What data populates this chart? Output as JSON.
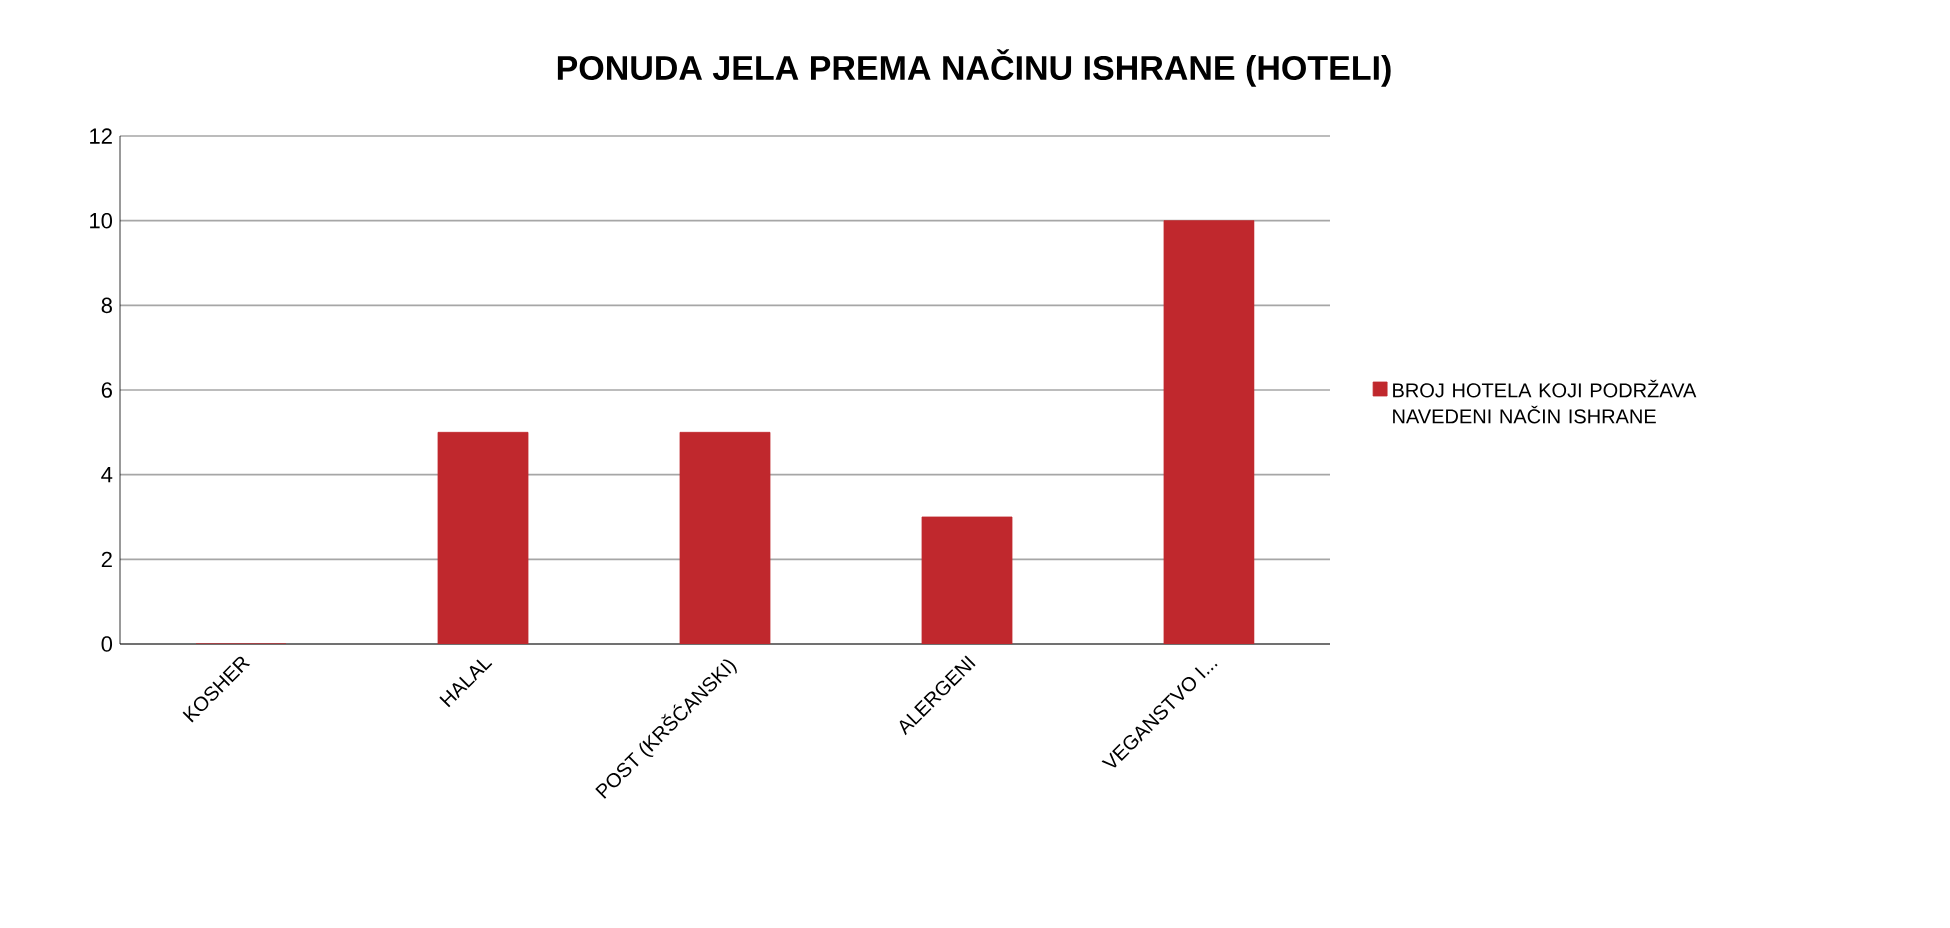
{
  "chart_data": {
    "type": "bar",
    "title": "PONUDA JELA PREMA NAČINU ISHRANE (HOTELI)",
    "categories": [
      "KOSHER",
      "HALAL",
      "POST (KRŠĆANSKI)",
      "ALERGENI",
      "VEGANSTVO I..."
    ],
    "series": [
      {
        "name": "BROJ HOTELA KOJI PODRŽAVA NAVEDENI NAČIN ISHRANE",
        "color": "#c0282d",
        "values": [
          0,
          5,
          5,
          3,
          10
        ]
      }
    ],
    "ylim": [
      0,
      12
    ],
    "yticks": [
      0,
      2,
      4,
      6,
      8,
      10,
      12
    ],
    "grid": "y",
    "legend": "right"
  }
}
